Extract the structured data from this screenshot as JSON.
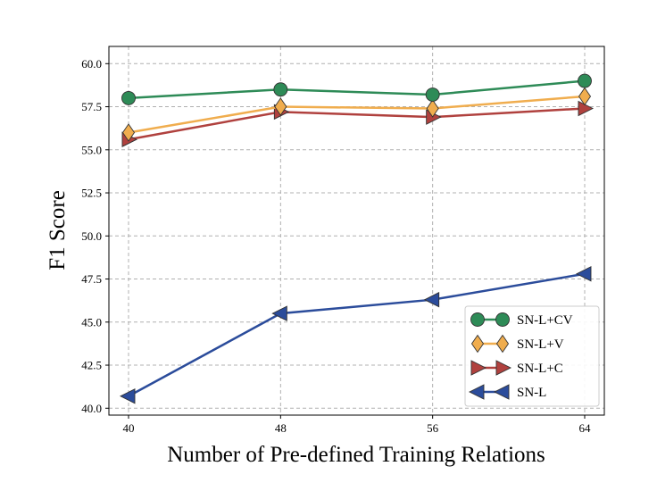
{
  "chart_data": {
    "type": "line",
    "xlabel": "Number of Pre-defined Training Relations",
    "ylabel": "F1 Score",
    "x": [
      40,
      48,
      56,
      64
    ],
    "x_tick_labels": [
      "40",
      "48",
      "56",
      "64"
    ],
    "ylim": [
      39.6,
      61.0
    ],
    "y_ticks": [
      40.0,
      42.5,
      45.0,
      47.5,
      50.0,
      52.5,
      55.0,
      57.5,
      60.0
    ],
    "y_tick_labels": [
      "40.0",
      "42.5",
      "45.0",
      "47.5",
      "50.0",
      "52.5",
      "55.0",
      "57.5",
      "60.0"
    ],
    "grid": true,
    "legend_position": "lower-right",
    "series": [
      {
        "name": "SN-L+CV",
        "values": [
          58.0,
          58.5,
          58.2,
          59.0
        ],
        "color": "#2e8b57",
        "marker": "circle"
      },
      {
        "name": "SN-L+V",
        "values": [
          56.0,
          57.5,
          57.4,
          58.1
        ],
        "color": "#f0ad4e",
        "marker": "diamond"
      },
      {
        "name": "SN-L+C",
        "values": [
          55.6,
          57.2,
          56.9,
          57.4
        ],
        "color": "#b0413e",
        "marker": "triangle-right"
      },
      {
        "name": "SN-L",
        "values": [
          40.7,
          45.5,
          46.3,
          47.8
        ],
        "color": "#2b4c9b",
        "marker": "triangle-left"
      }
    ]
  }
}
